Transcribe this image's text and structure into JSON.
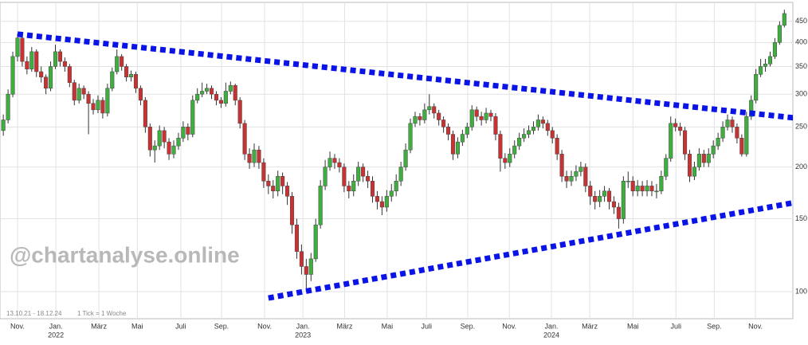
{
  "chart_data": {
    "type": "candlestick",
    "open": [
      245,
      260,
      300,
      370,
      410,
      360,
      345,
      380,
      340,
      330,
      310,
      350,
      380,
      360,
      350,
      320,
      290,
      310,
      300,
      285,
      275,
      290,
      270,
      310,
      340,
      370,
      350,
      330,
      335,
      310,
      290,
      250,
      220,
      225,
      245,
      230,
      215,
      225,
      235,
      250,
      240,
      290,
      300,
      305,
      310,
      300,
      290,
      285,
      305,
      315,
      290,
      255,
      215,
      205,
      220,
      205,
      185,
      180,
      175,
      190,
      180,
      170,
      145,
      125,
      115,
      110,
      120,
      145,
      180,
      200,
      210,
      205,
      200,
      180,
      175,
      185,
      200,
      190,
      185,
      170,
      165,
      160,
      170,
      175,
      185,
      200,
      220,
      255,
      265,
      260,
      275,
      280,
      270,
      260,
      250,
      240,
      215,
      230,
      240,
      250,
      275,
      265,
      260,
      270,
      265,
      240,
      210,
      205,
      215,
      225,
      235,
      240,
      245,
      250,
      260,
      255,
      245,
      235,
      215,
      190,
      185,
      190,
      195,
      200,
      180,
      170,
      165,
      170,
      175,
      165,
      160,
      150,
      185,
      185,
      175,
      180,
      175,
      180,
      175,
      175,
      190,
      210,
      255,
      250,
      245,
      215,
      190,
      200,
      215,
      205,
      215,
      225,
      235,
      250,
      260,
      250,
      235,
      215,
      265,
      290,
      335,
      350,
      355,
      370,
      400,
      440
    ],
    "high": [
      268,
      308,
      380,
      420,
      415,
      370,
      390,
      385,
      350,
      335,
      360,
      395,
      385,
      368,
      355,
      325,
      318,
      315,
      305,
      292,
      298,
      295,
      318,
      348,
      385,
      375,
      355,
      342,
      340,
      315,
      295,
      255,
      232,
      252,
      250,
      235,
      232,
      242,
      258,
      255,
      298,
      310,
      320,
      318,
      315,
      305,
      295,
      320,
      322,
      318,
      295,
      260,
      222,
      228,
      225,
      210,
      192,
      186,
      196,
      194,
      184,
      174,
      150,
      130,
      120,
      124,
      150,
      186,
      208,
      218,
      215,
      210,
      204,
      185,
      192,
      206,
      204,
      196,
      190,
      175,
      170,
      176,
      182,
      192,
      206,
      228,
      262,
      272,
      270,
      285,
      300,
      285,
      275,
      265,
      255,
      245,
      236,
      246,
      256,
      282,
      280,
      272,
      278,
      275,
      270,
      245,
      216,
      222,
      232,
      242,
      248,
      252,
      258,
      268,
      265,
      260,
      250,
      240,
      220,
      196,
      196,
      202,
      206,
      204,
      185,
      175,
      176,
      180,
      178,
      170,
      164,
      190,
      195,
      190,
      186,
      185,
      186,
      185,
      182,
      196,
      215,
      265,
      262,
      256,
      250,
      220,
      206,
      222,
      220,
      222,
      232,
      242,
      258,
      268,
      265,
      255,
      240,
      272,
      298,
      345,
      365,
      365,
      380,
      410,
      450,
      480
    ],
    "low": [
      238,
      255,
      295,
      360,
      350,
      335,
      340,
      330,
      320,
      300,
      305,
      345,
      350,
      340,
      312,
      282,
      285,
      292,
      240,
      268,
      270,
      262,
      265,
      305,
      335,
      342,
      322,
      322,
      302,
      282,
      242,
      212,
      205,
      220,
      222,
      208,
      210,
      220,
      230,
      232,
      236,
      285,
      295,
      300,
      292,
      282,
      278,
      280,
      300,
      282,
      248,
      208,
      198,
      200,
      198,
      178,
      172,
      168,
      170,
      172,
      162,
      138,
      120,
      110,
      100,
      106,
      118,
      142,
      176,
      196,
      198,
      194,
      174,
      168,
      170,
      180,
      184,
      178,
      164,
      158,
      153,
      156,
      165,
      170,
      180,
      196,
      216,
      250,
      252,
      255,
      268,
      262,
      252,
      242,
      232,
      208,
      210,
      225,
      235,
      245,
      258,
      252,
      255,
      258,
      232,
      195,
      198,
      200,
      210,
      220,
      230,
      235,
      240,
      245,
      248,
      238,
      228,
      208,
      184,
      178,
      180,
      185,
      190,
      174,
      162,
      158,
      160,
      165,
      158,
      154,
      142,
      146,
      178,
      170,
      170,
      170,
      170,
      170,
      168,
      172,
      186,
      206,
      244,
      238,
      208,
      184,
      186,
      196,
      200,
      200,
      210,
      220,
      230,
      245,
      242,
      228,
      212,
      212,
      260,
      285,
      330,
      340,
      350,
      365,
      395,
      435
    ],
    "close": [
      260,
      300,
      370,
      410,
      360,
      345,
      380,
      340,
      330,
      310,
      350,
      380,
      360,
      350,
      320,
      290,
      310,
      300,
      285,
      275,
      290,
      270,
      310,
      340,
      370,
      350,
      330,
      335,
      310,
      290,
      250,
      220,
      225,
      245,
      230,
      215,
      225,
      235,
      250,
      240,
      290,
      300,
      305,
      310,
      300,
      290,
      285,
      305,
      315,
      290,
      255,
      215,
      205,
      220,
      205,
      185,
      180,
      175,
      190,
      180,
      170,
      145,
      125,
      115,
      110,
      120,
      145,
      180,
      200,
      210,
      205,
      200,
      180,
      175,
      185,
      200,
      190,
      185,
      170,
      165,
      160,
      170,
      175,
      185,
      200,
      220,
      255,
      265,
      260,
      275,
      280,
      270,
      260,
      250,
      240,
      215,
      230,
      240,
      250,
      275,
      265,
      260,
      270,
      265,
      240,
      210,
      205,
      215,
      225,
      235,
      240,
      245,
      250,
      260,
      255,
      245,
      235,
      215,
      190,
      185,
      190,
      195,
      200,
      180,
      170,
      165,
      170,
      175,
      165,
      160,
      150,
      185,
      185,
      175,
      180,
      175,
      180,
      175,
      175,
      190,
      210,
      255,
      250,
      245,
      215,
      190,
      200,
      215,
      205,
      215,
      225,
      235,
      250,
      260,
      250,
      235,
      215,
      265,
      290,
      335,
      350,
      355,
      370,
      400,
      440,
      470
    ],
    "xlim": [
      -0.7,
      166.8
    ],
    "xticks": [
      {
        "value": 3,
        "label": "Nov."
      },
      {
        "value": 11.1,
        "label": "Jan.",
        "year": "2022"
      },
      {
        "value": 20.2,
        "label": "März"
      },
      {
        "value": 28.3,
        "label": "Mai"
      },
      {
        "value": 37.5,
        "label": "Juli"
      },
      {
        "value": 46.1,
        "label": "Sep."
      },
      {
        "value": 55.2,
        "label": "Nov."
      },
      {
        "value": 63.3,
        "label": "Jan.",
        "year": "2023"
      },
      {
        "value": 72.1,
        "label": "März"
      },
      {
        "value": 81.1,
        "label": "Mai"
      },
      {
        "value": 89.4,
        "label": "Juli"
      },
      {
        "value": 98.1,
        "label": "Sep."
      },
      {
        "value": 106.9,
        "label": "Nov."
      },
      {
        "value": 115.8,
        "label": "Jan.",
        "year": "2024"
      },
      {
        "value": 123.9,
        "label": "März"
      },
      {
        "value": 133,
        "label": "Mai"
      },
      {
        "value": 142.1,
        "label": "Juli"
      },
      {
        "value": 150.2,
        "label": "Sep."
      },
      {
        "value": 158.9,
        "label": "Nov."
      }
    ],
    "ylim": [
      86,
      500
    ],
    "yticks": [
      100,
      150,
      200,
      250,
      300,
      350,
      400,
      450
    ],
    "log_scale": true,
    "grid": true,
    "up_color": "#3fae3f",
    "down_color": "#c83232",
    "trendlines": [
      {
        "x": [
          3,
          167
        ],
        "y": [
          419,
          263
        ],
        "color": "#0a14e6"
      },
      {
        "x": [
          56,
          167
        ],
        "y": [
          96.5,
          164
        ],
        "color": "#0a14e6"
      }
    ],
    "watermark": "@chartanalyse.online",
    "period": "13.10.21 - 18.12.24",
    "tick_note": "1 Tick = 1 Woche"
  }
}
